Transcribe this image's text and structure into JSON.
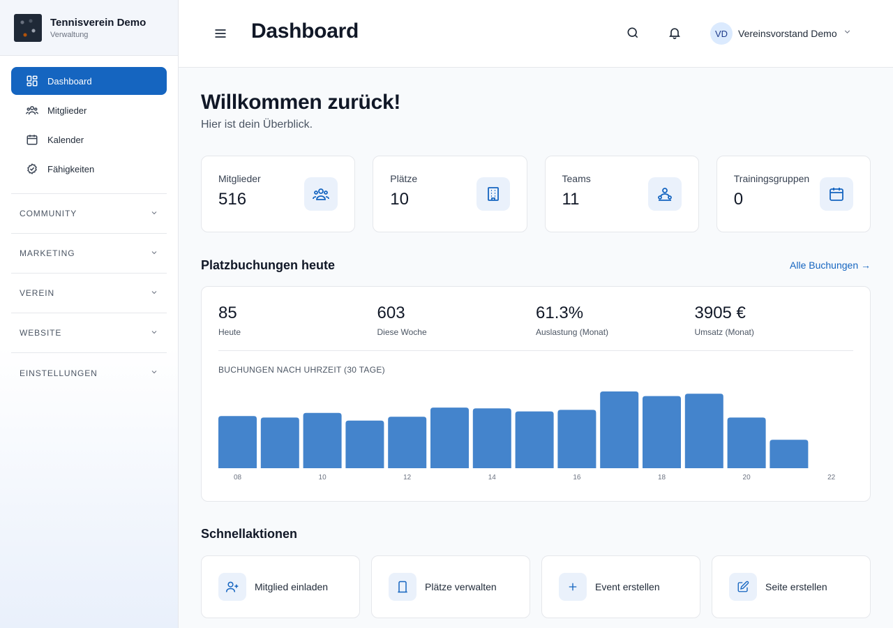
{
  "brand": {
    "name": "Tennisverein Demo",
    "subtitle": "Verwaltung"
  },
  "sidebar": {
    "items": [
      {
        "label": "Dashboard",
        "icon": "dashboard-icon",
        "active": true
      },
      {
        "label": "Mitglieder",
        "icon": "users-icon"
      },
      {
        "label": "Kalender",
        "icon": "calendar-icon"
      },
      {
        "label": "Fähigkeiten",
        "icon": "badge-check-icon"
      }
    ],
    "sections": [
      "COMMUNITY",
      "MARKETING",
      "VEREIN",
      "WEBSITE",
      "EINSTELLUNGEN"
    ]
  },
  "header": {
    "title": "Dashboard",
    "user": {
      "initials": "VD",
      "name": "Vereinsvorstand Demo"
    }
  },
  "welcome": {
    "title": "Willkommen zurück!",
    "subtitle": "Hier ist dein Überblick."
  },
  "stats": [
    {
      "label": "Mitglieder",
      "value": "516",
      "icon": "users-icon"
    },
    {
      "label": "Plätze",
      "value": "10",
      "icon": "building-icon"
    },
    {
      "label": "Teams",
      "value": "11",
      "icon": "team-icon"
    },
    {
      "label": "Trainingsgruppen",
      "value": "0",
      "icon": "calendar-icon"
    }
  ],
  "bookings": {
    "title": "Platzbuchungen heute",
    "link": "Alle Buchungen →",
    "kpis": [
      {
        "value": "85",
        "label": "Heute"
      },
      {
        "value": "603",
        "label": "Diese Woche"
      },
      {
        "value": "61.3%",
        "label": "Auslastung (Monat)"
      },
      {
        "value": "3905 €",
        "label": "Umsatz (Monat)"
      }
    ],
    "chart_title": "BUCHUNGEN NACH UHRZEIT (30 TAGE)"
  },
  "chart_data": {
    "type": "bar",
    "title": "BUCHUNGEN NACH UHRZEIT (30 TAGE)",
    "categories": [
      "08",
      "09",
      "10",
      "11",
      "12",
      "13",
      "14",
      "15",
      "16",
      "17",
      "18",
      "19",
      "20",
      "21",
      "22"
    ],
    "values": [
      68,
      66,
      72,
      62,
      67,
      79,
      78,
      74,
      76,
      100,
      94,
      97,
      66,
      37,
      0
    ],
    "tick_labels": [
      "08",
      "10",
      "12",
      "14",
      "16",
      "18",
      "20",
      "22"
    ],
    "color": "#4484cc",
    "ylim": [
      0,
      100
    ]
  },
  "quick": {
    "title": "Schnellaktionen",
    "actions": [
      {
        "label": "Mitglied einladen",
        "icon": "user-plus-icon"
      },
      {
        "label": "Plätze verwalten",
        "icon": "court-icon"
      },
      {
        "label": "Event erstellen",
        "icon": "plus-icon"
      },
      {
        "label": "Seite erstellen",
        "icon": "edit-icon"
      }
    ]
  },
  "colors": {
    "primary": "#1565c0",
    "bar": "#4484cc"
  }
}
